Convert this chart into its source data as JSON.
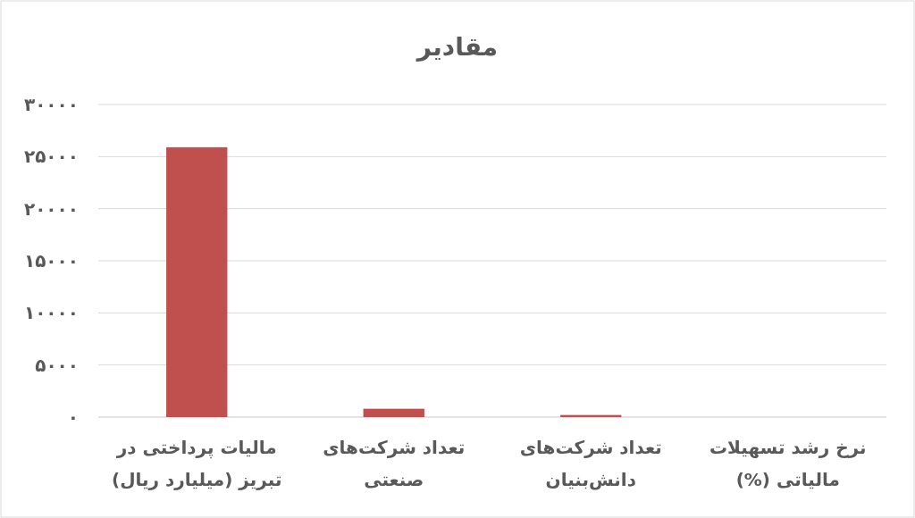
{
  "chart_data": {
    "type": "bar",
    "title": "مقادیر",
    "categories": [
      "مالیات پرداختی در تبریز (میلیارد ریال)",
      "تعداد شرکت‌های صنعتی",
      "تعداد شرکت‌های دانش‌بنیان",
      "نرخ رشد تسهیلات مالیاتی (%)"
    ],
    "values": [
      25900,
      800,
      200,
      0
    ],
    "color": "#c0504d",
    "ylim": [
      0,
      30000
    ],
    "yticks": [
      {
        "value": 0,
        "label": "۰"
      },
      {
        "value": 5000,
        "label": "۵۰۰۰"
      },
      {
        "value": 10000,
        "label": "۱۰۰۰۰"
      },
      {
        "value": 15000,
        "label": "۱۵۰۰۰"
      },
      {
        "value": 20000,
        "label": "۲۰۰۰۰"
      },
      {
        "value": 25000,
        "label": "۲۵۰۰۰"
      },
      {
        "value": 30000,
        "label": "۳۰۰۰۰"
      }
    ],
    "grid": "y"
  }
}
